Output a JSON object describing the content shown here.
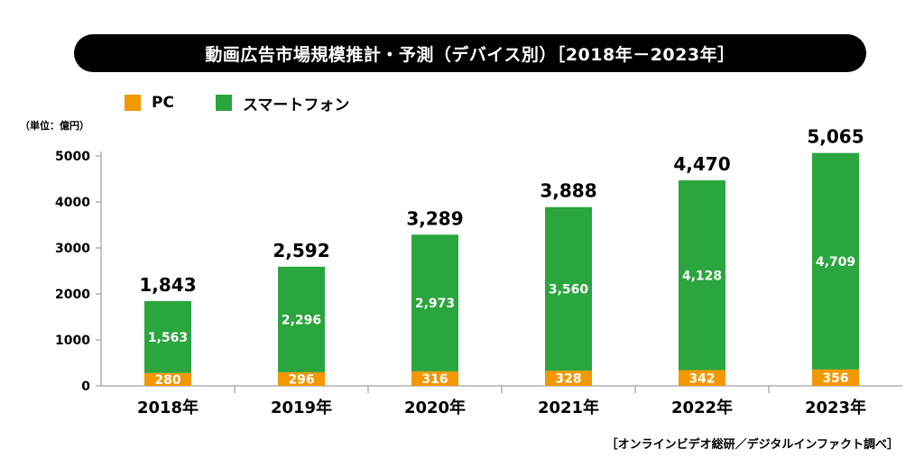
{
  "header": {
    "title": "動画広告市場規模推計・予測（デバイス別）［2018年－2023年］"
  },
  "legend": {
    "items": [
      {
        "label": "PC",
        "color": "#f39800"
      },
      {
        "label": "スマートフォン",
        "color": "#2ba53d"
      }
    ]
  },
  "unit_label": "（単位：億円）",
  "source_note": "［オンラインビデオ総研／デジタルインファクト調べ］",
  "chart_data": {
    "type": "bar",
    "stacked": true,
    "categories": [
      "2018年",
      "2019年",
      "2020年",
      "2021年",
      "2022年",
      "2023年"
    ],
    "series": [
      {
        "name": "PC",
        "color": "#f39800",
        "values": [
          280,
          296,
          316,
          328,
          342,
          356
        ],
        "value_labels": [
          "280",
          "296",
          "316",
          "328",
          "342",
          "356"
        ]
      },
      {
        "name": "スマートフォン",
        "color": "#2ba53d",
        "values": [
          1563,
          2296,
          2973,
          3560,
          4128,
          4709
        ],
        "value_labels": [
          "1,563",
          "2,296",
          "2,973",
          "3,560",
          "4,128",
          "4,709"
        ]
      }
    ],
    "totals": [
      1843,
      2592,
      3289,
      3888,
      4470,
      5065
    ],
    "total_labels": [
      "1,843",
      "2,592",
      "3,289",
      "3,888",
      "4,470",
      "5,065"
    ],
    "ylim": [
      0,
      5000
    ],
    "yticks": [
      0,
      1000,
      2000,
      3000,
      4000,
      5000
    ],
    "ytick_labels": [
      "0",
      "1000",
      "2000",
      "3000",
      "4000",
      "5000"
    ],
    "grid": false,
    "legend_position": "top-left"
  }
}
